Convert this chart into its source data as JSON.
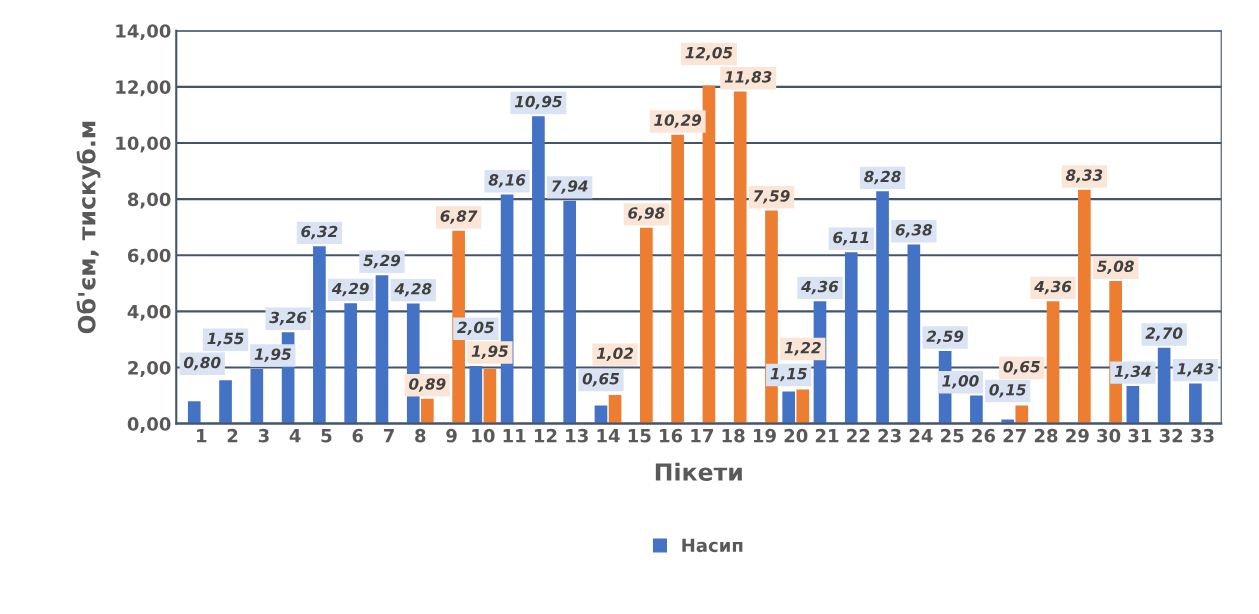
{
  "chart_data": {
    "type": "bar",
    "xlabel": "Пікети",
    "ylabel": "Об'єм, тискуб.м",
    "categories": [
      "1",
      "2",
      "3",
      "4",
      "5",
      "6",
      "7",
      "8",
      "9",
      "10",
      "11",
      "12",
      "13",
      "14",
      "15",
      "16",
      "17",
      "18",
      "19",
      "20",
      "21",
      "22",
      "23",
      "24",
      "25",
      "26",
      "27",
      "28",
      "29",
      "30",
      "31",
      "32",
      "33"
    ],
    "series": [
      {
        "name": "Насип",
        "color": "#4472c4",
        "values": [
          0.8,
          1.55,
          1.95,
          3.26,
          6.32,
          4.29,
          5.29,
          4.28,
          null,
          2.05,
          8.16,
          10.95,
          7.94,
          0.65,
          null,
          null,
          null,
          null,
          null,
          1.15,
          4.36,
          6.11,
          8.28,
          6.38,
          2.59,
          1.0,
          0.15,
          null,
          null,
          null,
          1.34,
          2.7,
          1.43
        ],
        "value_labels": [
          "0,80",
          "1,55",
          "1,95",
          "3,26",
          "6,32",
          "4,29",
          "5,29",
          "4,28",
          null,
          "2,05",
          "8,16",
          "10,95",
          "7,94",
          "0,65",
          null,
          null,
          null,
          null,
          null,
          "1,15",
          "4,36",
          "6,11",
          "8,28",
          "6,38",
          "2,59",
          "1,00",
          "0,15",
          null,
          null,
          null,
          "1,34",
          "2,70",
          "1,43"
        ]
      },
      {
        "color": "#ed7d31",
        "values": [
          null,
          null,
          null,
          null,
          null,
          null,
          null,
          0.89,
          6.87,
          1.95,
          null,
          null,
          null,
          1.02,
          6.98,
          10.29,
          12.05,
          11.83,
          7.59,
          1.22,
          null,
          null,
          null,
          null,
          null,
          null,
          0.65,
          4.36,
          8.33,
          5.08,
          null,
          null,
          null
        ],
        "value_labels": [
          null,
          null,
          null,
          null,
          null,
          null,
          null,
          "0,89",
          "6,87",
          "1,95",
          null,
          null,
          null,
          "1,02",
          "6,98",
          "10,29",
          "12,05",
          "11,83",
          "7,59",
          "1,22",
          null,
          null,
          null,
          null,
          null,
          null,
          "0,65",
          "4,36",
          "8,33",
          "5,08",
          null,
          null,
          null
        ]
      }
    ],
    "ylim": [
      0,
      14
    ],
    "yticks": [
      {
        "value": 0,
        "label": "0,00"
      },
      {
        "value": 2,
        "label": "2,00"
      },
      {
        "value": 4,
        "label": "4,00"
      },
      {
        "value": 6,
        "label": "6,00"
      },
      {
        "value": 8,
        "label": "8,00"
      },
      {
        "value": 10,
        "label": "10,00"
      },
      {
        "value": 12,
        "label": "12,00"
      },
      {
        "value": 14,
        "label": "14,00"
      }
    ],
    "grid": "y",
    "legend": "bottom"
  }
}
